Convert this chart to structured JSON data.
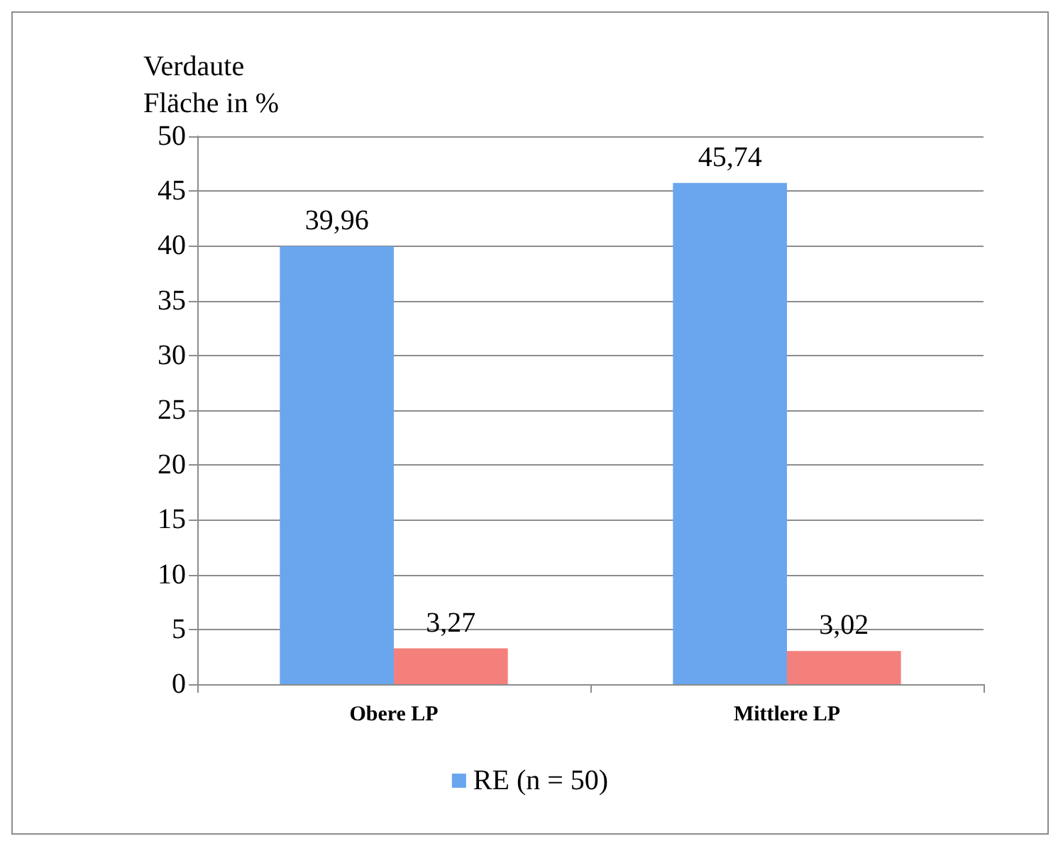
{
  "chart_data": {
    "type": "bar",
    "ylabel": "Verdaute\nFläche in %",
    "categories": [
      "Obere LP",
      "Mittlere LP"
    ],
    "series": [
      {
        "name": "RE (n = 50)",
        "color": "#6aa6ee",
        "values": [
          39.96,
          45.74
        ],
        "value_labels": [
          "39,96",
          "45,74"
        ]
      },
      {
        "color": "#f4807c",
        "values": [
          3.27,
          3.02
        ],
        "value_labels": [
          "3,27",
          "3,02"
        ]
      }
    ],
    "ylim": [
      0,
      50
    ],
    "yticks": [
      0,
      5,
      10,
      15,
      20,
      25,
      30,
      35,
      40,
      45,
      50
    ],
    "grid": "y",
    "legend": "bottom"
  }
}
